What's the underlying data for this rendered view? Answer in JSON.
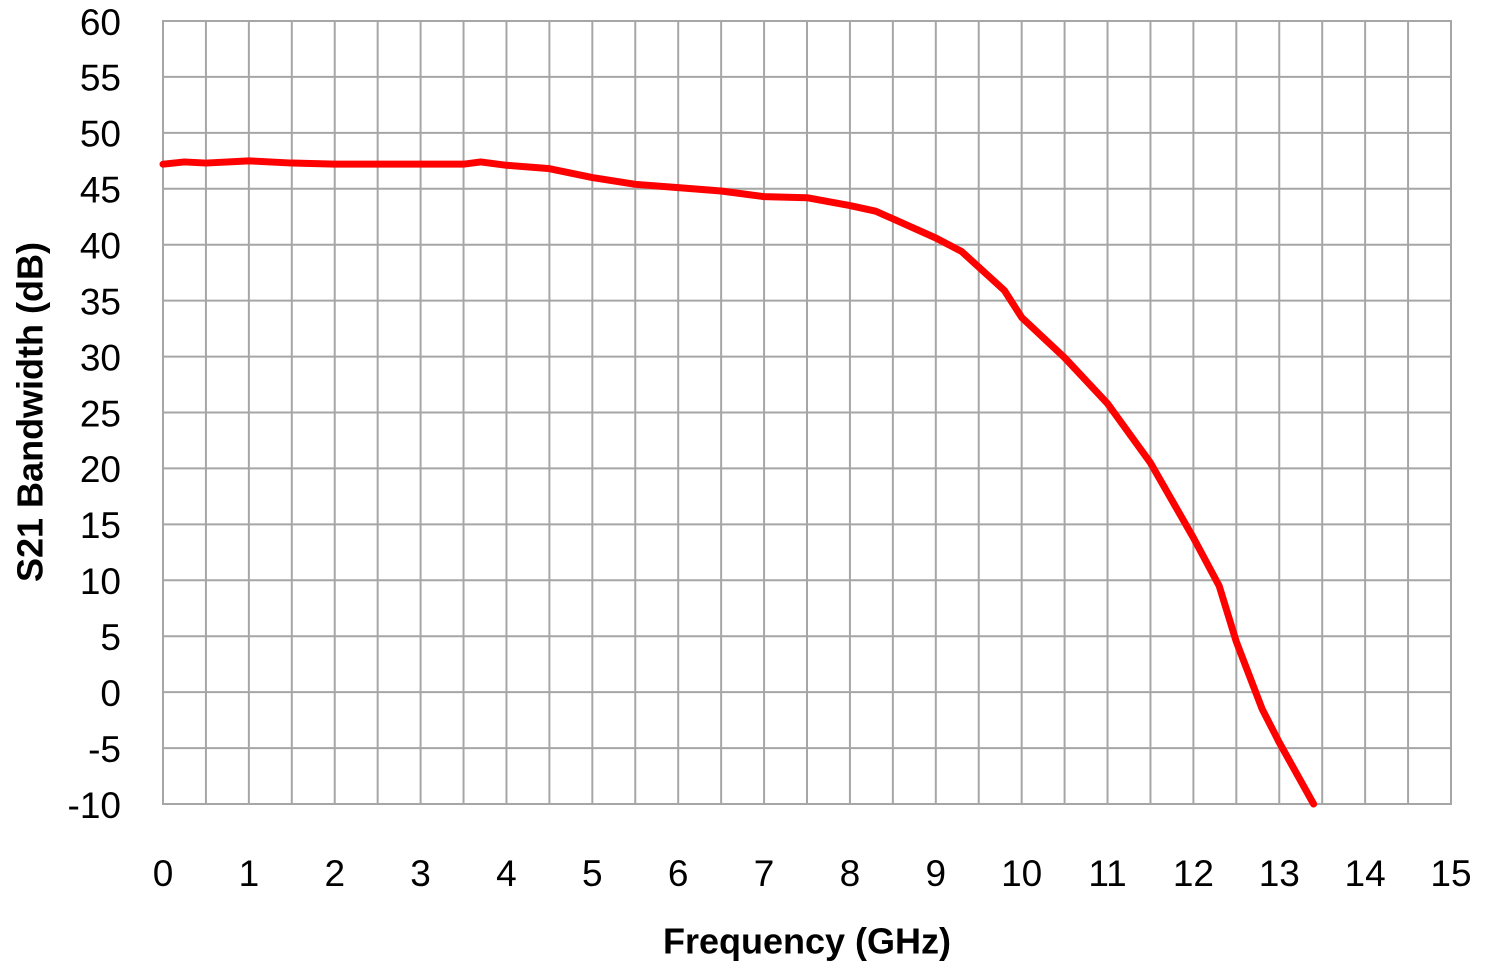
{
  "chart_data": {
    "type": "line",
    "x_label": "Frequency (GHz)",
    "y_label": "S21 Bandwidth (dB)",
    "x": [
      0,
      0.25,
      0.5,
      1,
      1.5,
      2,
      3,
      3.5,
      3.7,
      4,
      4.5,
      5,
      5.5,
      6,
      6.5,
      7,
      7.5,
      8,
      8.3,
      9,
      9.3,
      9.8,
      10,
      10.5,
      11,
      11.5,
      12,
      12.3,
      12.5,
      12.8,
      13,
      13.4
    ],
    "series": [
      {
        "color": "#ff0000",
        "values": [
          47.2,
          47.4,
          47.3,
          47.5,
          47.3,
          47.2,
          47.2,
          47.2,
          47.4,
          47.1,
          46.8,
          46.0,
          45.4,
          45.1,
          44.8,
          44.3,
          44.2,
          43.5,
          43.0,
          40.6,
          39.4,
          35.9,
          33.5,
          29.9,
          25.8,
          20.5,
          13.8,
          9.5,
          4.5,
          -1.5,
          -4.5,
          -10
        ]
      }
    ],
    "xlim": [
      0,
      15
    ],
    "xticks": [
      0,
      1,
      2,
      3,
      4,
      5,
      6,
      7,
      8,
      9,
      10,
      11,
      12,
      13,
      14,
      15
    ],
    "ylim": [
      -10,
      60
    ],
    "yticks": [
      -10,
      -5,
      0,
      5,
      10,
      15,
      20,
      25,
      30,
      35,
      40,
      45,
      50,
      55,
      60
    ],
    "grid": true
  }
}
